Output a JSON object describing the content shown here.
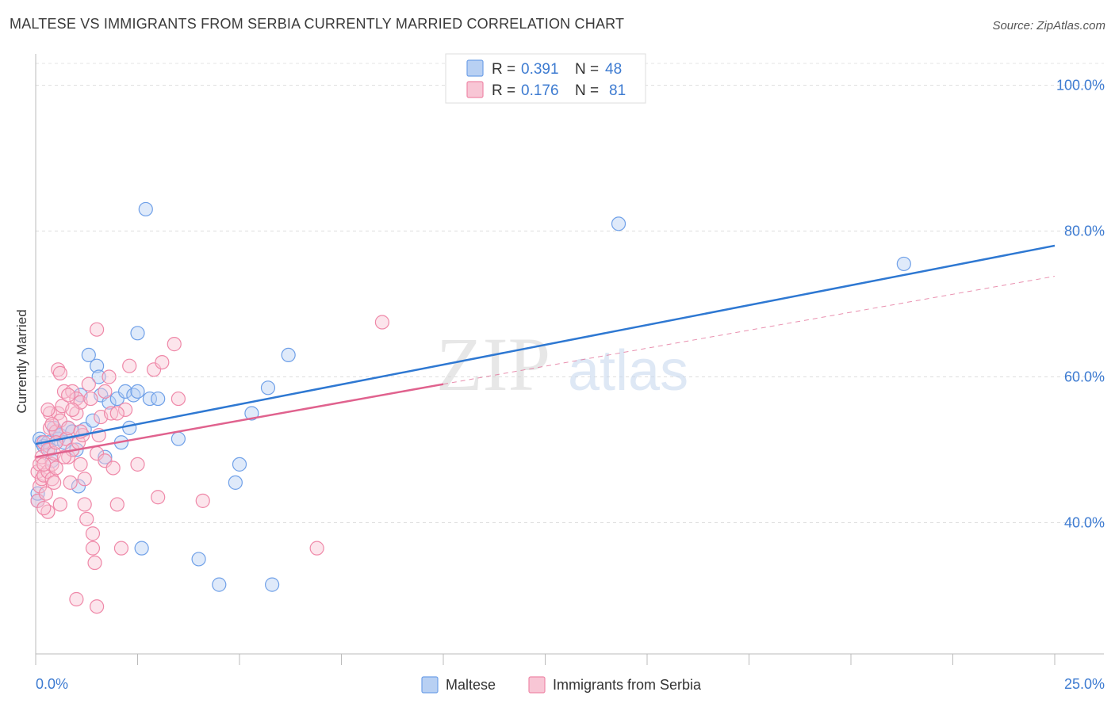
{
  "title": "MALTESE VS IMMIGRANTS FROM SERBIA CURRENTLY MARRIED CORRELATION CHART",
  "source": "Source: ZipAtlas.com",
  "watermark": {
    "zip": "ZIP",
    "atlas": "atlas"
  },
  "chart_data": {
    "type": "scatter",
    "xlabel": "",
    "ylabel": "Currently Married",
    "xlim": [
      0,
      25
    ],
    "ylim": [
      22,
      103
    ],
    "x_tick_labels": [
      "0.0%",
      "25.0%"
    ],
    "y_ticks": [
      40,
      60,
      80,
      100
    ],
    "y_tick_labels": [
      "40.0%",
      "60.0%",
      "80.0%",
      "100.0%"
    ],
    "grid": true,
    "legend_position": "top-center",
    "legend": [
      {
        "name": "Maltese",
        "r_label": "R =",
        "r": "0.391",
        "n_label": "N =",
        "n": "48",
        "color": "#6fa0e8",
        "fill": "#b8d0f3"
      },
      {
        "name": "Immigrants from Serbia",
        "r_label": "R =",
        "r": "0.176",
        "n_label": "N =",
        "n": "81",
        "color": "#ef88a8",
        "fill": "#f8c6d5"
      }
    ],
    "series": [
      {
        "name": "Maltese",
        "color": "#6fa0e8",
        "trend": {
          "x0": 0,
          "y0": 50.8,
          "x1": 25,
          "y1": 78.0,
          "style": "solid",
          "line_color": "#2e78d2"
        },
        "points": [
          [
            0.1,
            51.5
          ],
          [
            0.15,
            51
          ],
          [
            0.2,
            50.5
          ],
          [
            0.3,
            51
          ],
          [
            0.35,
            50
          ],
          [
            0.4,
            48.5
          ],
          [
            0.45,
            53
          ],
          [
            0.5,
            52.5
          ],
          [
            0.55,
            51.5
          ],
          [
            0.6,
            52
          ],
          [
            0.7,
            51
          ],
          [
            0.8,
            53
          ],
          [
            0.9,
            52.5
          ],
          [
            1.0,
            50
          ],
          [
            1.05,
            45
          ],
          [
            1.1,
            57.5
          ],
          [
            1.2,
            52.8
          ],
          [
            1.3,
            63
          ],
          [
            1.4,
            54
          ],
          [
            1.5,
            61.5
          ],
          [
            1.55,
            60
          ],
          [
            1.6,
            57.5
          ],
          [
            1.7,
            49
          ],
          [
            1.8,
            56.5
          ],
          [
            2.0,
            57
          ],
          [
            2.1,
            51
          ],
          [
            2.2,
            58
          ],
          [
            2.3,
            53
          ],
          [
            2.4,
            57.5
          ],
          [
            2.5,
            58
          ],
          [
            2.8,
            57
          ],
          [
            2.6,
            36.5
          ],
          [
            2.5,
            66
          ],
          [
            2.7,
            83
          ],
          [
            3.0,
            57
          ],
          [
            3.5,
            51.5
          ],
          [
            4.0,
            35
          ],
          [
            4.5,
            31.5
          ],
          [
            4.9,
            45.5
          ],
          [
            5.0,
            48
          ],
          [
            5.3,
            55
          ],
          [
            5.7,
            58.5
          ],
          [
            5.8,
            31.5
          ],
          [
            6.2,
            63
          ],
          [
            14.3,
            81
          ],
          [
            21.3,
            75.5
          ],
          [
            0.05,
            43
          ],
          [
            0.05,
            44
          ]
        ]
      },
      {
        "name": "Immigrants from Serbia",
        "color": "#ef88a8",
        "trend": {
          "x0": 0,
          "y0": 49.0,
          "x1": 10,
          "y1": 59.0,
          "dash_x1": 25,
          "dash_y1": 73.8,
          "style": "solid-then-dashed",
          "line_color": "#e0628e"
        },
        "points": [
          [
            0.05,
            43
          ],
          [
            0.05,
            47
          ],
          [
            0.1,
            45
          ],
          [
            0.1,
            48
          ],
          [
            0.15,
            46
          ],
          [
            0.15,
            49
          ],
          [
            0.2,
            46.5
          ],
          [
            0.2,
            51
          ],
          [
            0.25,
            44
          ],
          [
            0.3,
            47
          ],
          [
            0.3,
            50
          ],
          [
            0.35,
            53
          ],
          [
            0.35,
            55
          ],
          [
            0.4,
            48
          ],
          [
            0.4,
            46
          ],
          [
            0.45,
            45.5
          ],
          [
            0.45,
            49.5
          ],
          [
            0.5,
            47.5
          ],
          [
            0.5,
            52.5
          ],
          [
            0.55,
            55
          ],
          [
            0.55,
            61
          ],
          [
            0.6,
            42.5
          ],
          [
            0.6,
            54
          ],
          [
            0.65,
            56
          ],
          [
            0.7,
            58
          ],
          [
            0.75,
            51.5
          ],
          [
            0.8,
            53
          ],
          [
            0.8,
            49
          ],
          [
            0.85,
            45.5
          ],
          [
            0.9,
            50
          ],
          [
            0.9,
            58
          ],
          [
            1.0,
            55
          ],
          [
            1.0,
            57
          ],
          [
            1.05,
            51
          ],
          [
            1.1,
            48
          ],
          [
            1.1,
            56.5
          ],
          [
            1.15,
            52
          ],
          [
            1.2,
            46
          ],
          [
            1.2,
            42.5
          ],
          [
            1.25,
            40.5
          ],
          [
            1.3,
            59
          ],
          [
            1.35,
            57
          ],
          [
            1.4,
            36.5
          ],
          [
            1.4,
            38.5
          ],
          [
            1.45,
            34.5
          ],
          [
            1.5,
            49.5
          ],
          [
            1.55,
            52
          ],
          [
            1.6,
            54.5
          ],
          [
            1.7,
            48.5
          ],
          [
            1.8,
            60
          ],
          [
            1.85,
            55
          ],
          [
            1.9,
            47.5
          ],
          [
            2.0,
            42.5
          ],
          [
            2.1,
            36.5
          ],
          [
            2.2,
            55.5
          ],
          [
            2.3,
            61.5
          ],
          [
            2.5,
            48
          ],
          [
            2.9,
            61
          ],
          [
            3.0,
            43.5
          ],
          [
            3.1,
            62
          ],
          [
            3.4,
            64.5
          ],
          [
            3.5,
            57
          ],
          [
            4.1,
            43
          ],
          [
            6.9,
            36.5
          ],
          [
            8.5,
            67.5
          ],
          [
            1.5,
            66.5
          ],
          [
            1.5,
            28.5
          ],
          [
            1.0,
            29.5
          ],
          [
            0.3,
            41.5
          ],
          [
            0.2,
            42
          ],
          [
            0.6,
            60.5
          ],
          [
            0.4,
            53.5
          ],
          [
            0.9,
            55.5
          ],
          [
            1.1,
            52.5
          ],
          [
            0.7,
            49
          ],
          [
            0.5,
            51
          ],
          [
            0.3,
            55.5
          ],
          [
            1.7,
            58
          ],
          [
            2.0,
            55
          ],
          [
            0.8,
            57.5
          ],
          [
            0.2,
            48
          ]
        ]
      }
    ]
  }
}
